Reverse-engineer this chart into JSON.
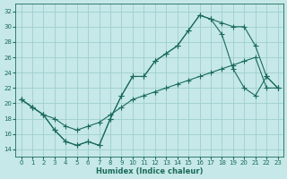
{
  "xlabel": "Humidex (Indice chaleur)",
  "background_color": "#c6e8e8",
  "grid_color": "#9ecece",
  "line_color": "#1a6b5a",
  "xlim": [
    -0.5,
    23.5
  ],
  "ylim": [
    13,
    33
  ],
  "xticks": [
    0,
    1,
    2,
    3,
    4,
    5,
    6,
    7,
    8,
    9,
    10,
    11,
    12,
    13,
    14,
    15,
    16,
    17,
    18,
    19,
    20,
    21,
    22,
    23
  ],
  "yticks": [
    14,
    16,
    18,
    20,
    22,
    24,
    26,
    28,
    30,
    32
  ],
  "line1_x": [
    0,
    1,
    2,
    3,
    4,
    5,
    6,
    7,
    8,
    9,
    10,
    11,
    12,
    13,
    14,
    15,
    16,
    17,
    18,
    19,
    20,
    21,
    22,
    23
  ],
  "line1_y": [
    20.5,
    19.5,
    18.5,
    16.5,
    15.0,
    14.5,
    15.0,
    14.5,
    18.0,
    21.0,
    23.5,
    23.5,
    25.5,
    26.5,
    27.5,
    29.5,
    31.5,
    31.0,
    30.5,
    30.0,
    30.0,
    27.5,
    23.5,
    22.0
  ],
  "line2_x": [
    0,
    1,
    2,
    3,
    4,
    5,
    6,
    7,
    8,
    9,
    10,
    11,
    12,
    13,
    14,
    15,
    16,
    17,
    18,
    19,
    20,
    21,
    22,
    23
  ],
  "line2_y": [
    20.5,
    19.5,
    18.5,
    16.5,
    15.0,
    14.5,
    15.0,
    14.5,
    18.0,
    21.0,
    23.5,
    23.5,
    25.5,
    26.5,
    27.5,
    29.5,
    31.5,
    31.0,
    29.0,
    24.5,
    22.0,
    21.0,
    23.5,
    22.0
  ],
  "line3_x": [
    0,
    1,
    2,
    3,
    4,
    5,
    6,
    7,
    8,
    9,
    10,
    11,
    12,
    13,
    14,
    15,
    16,
    17,
    18,
    19,
    20,
    21,
    22,
    23
  ],
  "line3_y": [
    20.5,
    19.5,
    18.5,
    18.0,
    17.0,
    16.5,
    17.0,
    17.5,
    18.5,
    19.5,
    20.5,
    21.0,
    21.5,
    22.0,
    22.5,
    23.0,
    23.5,
    24.0,
    24.5,
    25.0,
    25.5,
    26.0,
    22.0,
    22.0
  ]
}
